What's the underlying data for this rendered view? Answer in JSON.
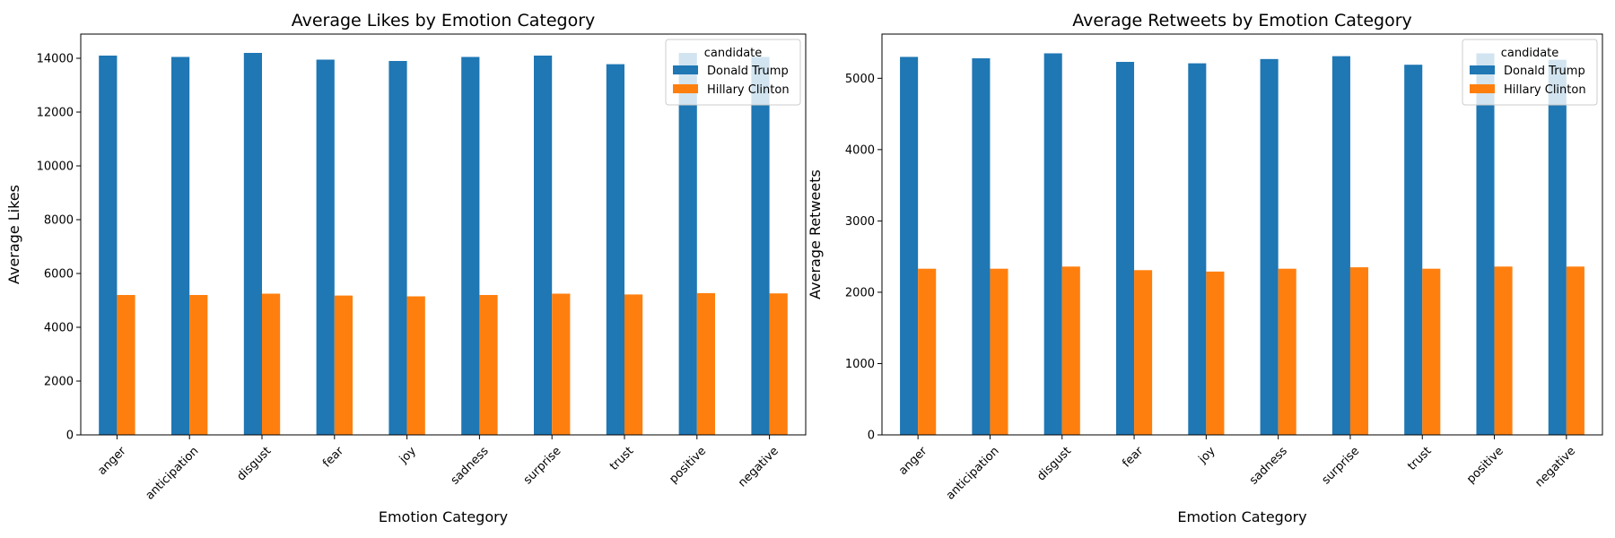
{
  "chart_data": [
    {
      "type": "bar",
      "title": "Average Likes by Emotion Category",
      "xlabel": "Emotion Category",
      "ylabel": "Average Likes",
      "categories": [
        "anger",
        "anticipation",
        "disgust",
        "fear",
        "joy",
        "sadness",
        "surprise",
        "trust",
        "positive",
        "negative"
      ],
      "series": [
        {
          "name": "Donald Trump",
          "color": "#1f77b4",
          "values": [
            14100,
            14050,
            14200,
            13950,
            13900,
            14050,
            14100,
            13780,
            14200,
            14050
          ]
        },
        {
          "name": "Hillary Clinton",
          "color": "#ff7f0e",
          "values": [
            5200,
            5200,
            5250,
            5180,
            5150,
            5200,
            5250,
            5220,
            5270,
            5260
          ]
        }
      ],
      "ylim": [
        0,
        14900
      ],
      "yticks": [
        0,
        2000,
        4000,
        6000,
        8000,
        10000,
        12000,
        14000
      ],
      "legend": {
        "title": "candidate",
        "placement": "top-right"
      }
    },
    {
      "type": "bar",
      "title": "Average Retweets by Emotion Category",
      "xlabel": "Emotion Category",
      "ylabel": "Average Retweets",
      "categories": [
        "anger",
        "anticipation",
        "disgust",
        "fear",
        "joy",
        "sadness",
        "surprise",
        "trust",
        "positive",
        "negative"
      ],
      "series": [
        {
          "name": "Donald Trump",
          "color": "#1f77b4",
          "values": [
            5300,
            5280,
            5350,
            5230,
            5210,
            5270,
            5310,
            5190,
            5350,
            5260
          ]
        },
        {
          "name": "Hillary Clinton",
          "color": "#ff7f0e",
          "values": [
            2330,
            2330,
            2360,
            2310,
            2290,
            2330,
            2350,
            2330,
            2360,
            2360
          ]
        }
      ],
      "ylim": [
        0,
        5620
      ],
      "yticks": [
        0,
        1000,
        2000,
        3000,
        4000,
        5000
      ],
      "legend": {
        "title": "candidate",
        "placement": "top-right"
      }
    }
  ]
}
